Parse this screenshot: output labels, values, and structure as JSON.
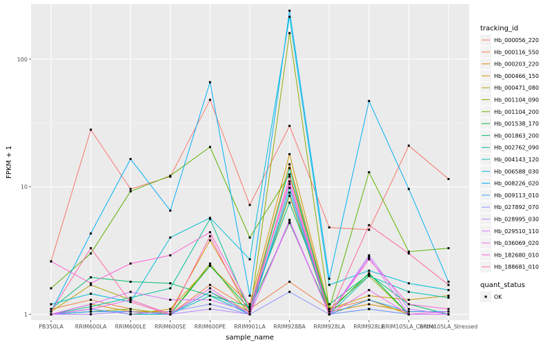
{
  "chart_data": {
    "type": "line",
    "xlabel": "sample_name",
    "ylabel": "FPKM + 1",
    "y_scale": "log10",
    "ylim": [
      0.9,
      270
    ],
    "y_ticks": [
      1,
      10,
      100
    ],
    "y_tick_labels": [
      "1",
      "10",
      "100"
    ],
    "grid": true,
    "legend_position": "right",
    "categories": [
      "PB350LA",
      "RRIM600LA",
      "RRIM600LE",
      "RRIM600SE",
      "RRIM600PE",
      "RRIM901LA",
      "RRIM928BA",
      "RRIM928LA",
      "RRIM928LE",
      "RRIM105LA_Control",
      "RRIM105LA_Stressed"
    ],
    "x_tick_labels": [
      "PB350LA",
      "RRIM600LA",
      "RRIM600LE",
      "RRIM600SE",
      "RRIM600PE",
      "RRIM901LA",
      "RRIM928BA",
      "RRIM928LA",
      "RRIM928LE",
      "RRIM105LA_Control",
      "RRIM105LA_Stressed"
    ],
    "legend_title": "tracking_id",
    "series": [
      {
        "name": "Hb_000056_220",
        "color": "#F8766D",
        "values": [
          2.6,
          28,
          9.6,
          12,
          48,
          7.2,
          30,
          4.8,
          4.6,
          21,
          11.5
        ]
      },
      {
        "name": "Hb_000116_550",
        "color": "#EE8043",
        "values": [
          1.1,
          1.3,
          1.1,
          1.0,
          1.7,
          1.1,
          1.8,
          1.1,
          1.3,
          1.0,
          1.0
        ]
      },
      {
        "name": "Hb_000203_220",
        "color": "#DE8C00",
        "values": [
          1.0,
          1.2,
          1.05,
          1.05,
          3.8,
          1.1,
          15,
          1.05,
          1.2,
          1.05,
          1.05
        ]
      },
      {
        "name": "Hb_000466_150",
        "color": "#CA9700",
        "values": [
          1.0,
          1.1,
          1.0,
          1.1,
          2.4,
          1.2,
          18,
          1.1,
          1.4,
          1.3,
          1.4
        ]
      },
      {
        "name": "Hb_000471_080",
        "color": "#B0A100",
        "values": [
          1.05,
          1.7,
          1.3,
          1.0,
          1.5,
          1.05,
          8.5,
          1.0,
          1.3,
          1.0,
          1.0
        ]
      },
      {
        "name": "Hb_001104_090",
        "color": "#8EAB00",
        "values": [
          1.0,
          1.05,
          1.1,
          1.0,
          2.5,
          1.0,
          160,
          1.1,
          2.0,
          1.0,
          1.0
        ]
      },
      {
        "name": "Hb_001104_200",
        "color": "#5BB300",
        "values": [
          1.6,
          3.0,
          9.2,
          12.2,
          20.5,
          4.0,
          12.5,
          1.1,
          13,
          3.1,
          3.3
        ]
      },
      {
        "name": "Hb_001538_170",
        "color": "#00BA38",
        "values": [
          1.0,
          1.05,
          1.05,
          1.0,
          2.4,
          1.1,
          5.2,
          1.05,
          2.1,
          1.0,
          1.0
        ]
      },
      {
        "name": "Hb_001863_200",
        "color": "#00BE6C",
        "values": [
          1.1,
          1.95,
          1.8,
          1.75,
          1.4,
          1.15,
          7.5,
          1.2,
          2.05,
          1.2,
          1.0
        ]
      },
      {
        "name": "Hb_002762_090",
        "color": "#00C097",
        "values": [
          1.0,
          1.15,
          1.35,
          1.6,
          5.6,
          1.05,
          14,
          1.0,
          1.1,
          1.0,
          1.0
        ]
      },
      {
        "name": "Hb_004143_120",
        "color": "#00C1B9",
        "values": [
          1.0,
          1.1,
          1.0,
          1.0,
          1.4,
          1.0,
          9.8,
          1.0,
          2.0,
          1.5,
          1.35
        ]
      },
      {
        "name": "Hb_006588_030",
        "color": "#00BCD8",
        "values": [
          1.2,
          1.45,
          1.25,
          4.0,
          5.7,
          2.7,
          215,
          1.7,
          2.2,
          1.75,
          1.55
        ]
      },
      {
        "name": "Hb_008226_020",
        "color": "#00B0F6",
        "values": [
          1.05,
          4.3,
          16.5,
          6.5,
          66,
          1.4,
          240,
          1.9,
          47,
          9.6,
          1.8
        ]
      },
      {
        "name": "Hb_009113_010",
        "color": "#2BA1FF",
        "values": [
          1.0,
          1.05,
          1.05,
          1.0,
          1.5,
          1.0,
          9.0,
          1.0,
          1.3,
          1.05,
          1.05
        ]
      },
      {
        "name": "Hb_027892_070",
        "color": "#8B93FF",
        "values": [
          1.0,
          1.1,
          1.0,
          1.05,
          1.2,
          1.0,
          1.5,
          1.0,
          1.1,
          1.0,
          1.0
        ]
      },
      {
        "name": "Hb_028995_030",
        "color": "#B983FF",
        "values": [
          1.0,
          1.0,
          1.05,
          1.0,
          1.1,
          1.0,
          5.5,
          1.0,
          2.9,
          1.1,
          1.0
        ]
      },
      {
        "name": "Hb_029510_110",
        "color": "#DB72FB",
        "values": [
          1.0,
          1.2,
          1.5,
          1.3,
          1.3,
          1.05,
          11,
          1.0,
          2.8,
          1.0,
          1.0
        ]
      },
      {
        "name": "Hb_036069_020",
        "color": "#F066EA",
        "values": [
          1.0,
          1.1,
          1.3,
          1.0,
          1.6,
          1.0,
          5.3,
          1.0,
          1.55,
          1.0,
          1.05
        ]
      },
      {
        "name": "Hb_182680_010",
        "color": "#FC61D5",
        "values": [
          2.6,
          1.75,
          2.5,
          2.9,
          4.4,
          1.15,
          10.5,
          1.0,
          2.7,
          1.2,
          1.1
        ]
      },
      {
        "name": "Hb_188681_010",
        "color": "#FF67A4",
        "values": [
          1.05,
          3.3,
          1.25,
          1.0,
          4.1,
          1.0,
          12,
          1.0,
          5.0,
          3.0,
          1.7
        ]
      }
    ],
    "quant_status_legend": {
      "title": "quant_status",
      "entries": [
        "OK"
      ]
    }
  }
}
